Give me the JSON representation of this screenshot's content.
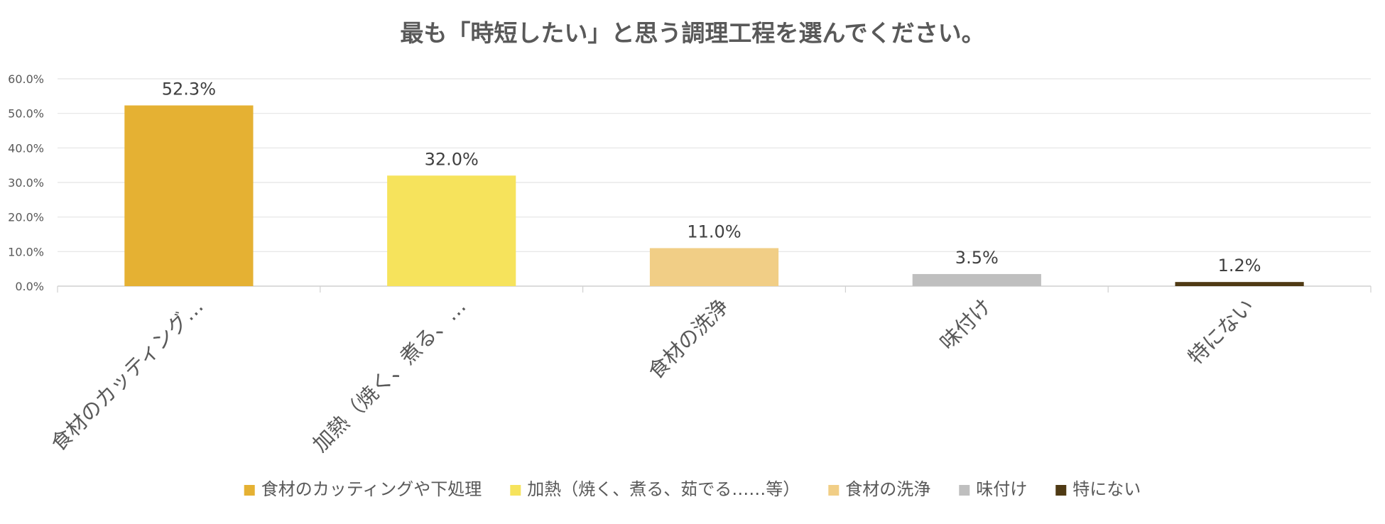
{
  "chart_data": {
    "type": "bar",
    "title": "最も「時短したい」と思う調理工程を選んでください。",
    "xlabel": "",
    "ylabel": "",
    "ylim": [
      0,
      60
    ],
    "y_ticks": [
      "0.0%",
      "10.0%",
      "20.0%",
      "30.0%",
      "40.0%",
      "50.0%",
      "60.0%"
    ],
    "grid": true,
    "legend_position": "bottom",
    "categories": [
      "食材のカッティングや下処理",
      "加熱（焼く、煮る、茹でる……等）",
      "食材の洗浄",
      "味付け",
      "特にない"
    ],
    "category_tick_labels": [
      "食材のカッティング…",
      "加熱（焼く、煮る、…",
      "食材の洗浄",
      "味付け",
      "特にない"
    ],
    "values": [
      52.3,
      32.0,
      11.0,
      3.5,
      1.2
    ],
    "data_labels": [
      "52.3%",
      "32.0%",
      "11.0%",
      "3.5%",
      "1.2%"
    ],
    "colors": [
      "#E5B133",
      "#F6E35C",
      "#F1CE86",
      "#BFBFBF",
      "#4F3A14"
    ]
  }
}
